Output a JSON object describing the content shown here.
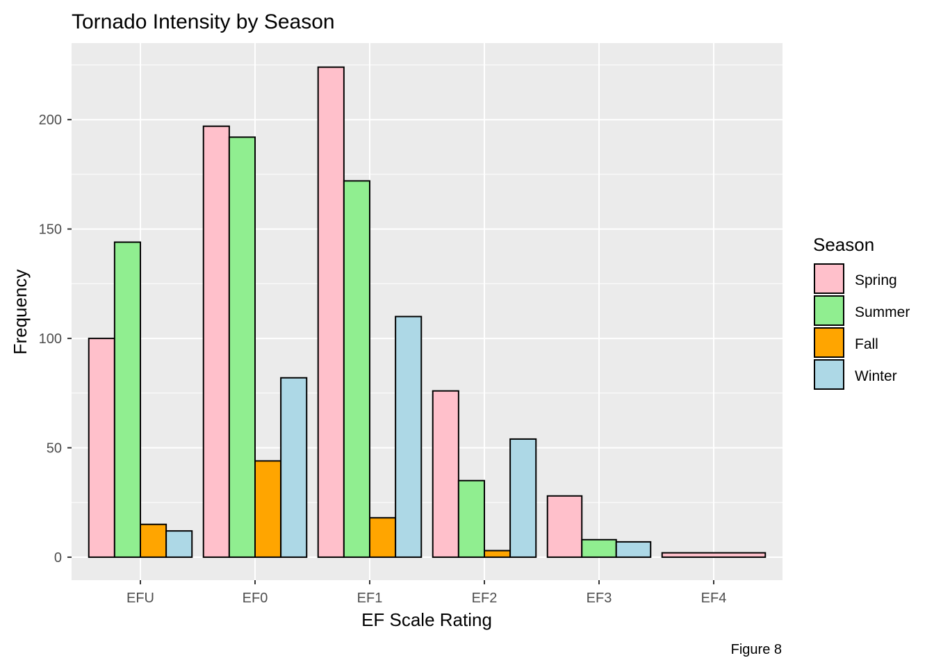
{
  "chart_data": {
    "type": "bar",
    "title": "Tornado Intensity by Season",
    "xlabel": "EF Scale Rating",
    "ylabel": "Frequency",
    "caption": "Figure 8",
    "categories": [
      "EFU",
      "EF0",
      "EF1",
      "EF2",
      "EF3",
      "EF4"
    ],
    "ylim": [
      -10.5,
      235
    ],
    "yticks": [
      0,
      50,
      100,
      150,
      200
    ],
    "grid": true,
    "legend": {
      "title": "Season",
      "position": "right"
    },
    "series": [
      {
        "name": "Spring",
        "color": "#FFC0CB",
        "values": [
          100,
          197,
          224,
          76,
          28,
          2
        ]
      },
      {
        "name": "Summer",
        "color": "#90EE90",
        "values": [
          144,
          192,
          172,
          35,
          8,
          null
        ]
      },
      {
        "name": "Fall",
        "color": "#FFA500",
        "values": [
          15,
          44,
          18,
          3,
          null,
          null
        ]
      },
      {
        "name": "Winter",
        "color": "#ADD8E6",
        "values": [
          12,
          82,
          110,
          54,
          7,
          null
        ]
      }
    ]
  }
}
